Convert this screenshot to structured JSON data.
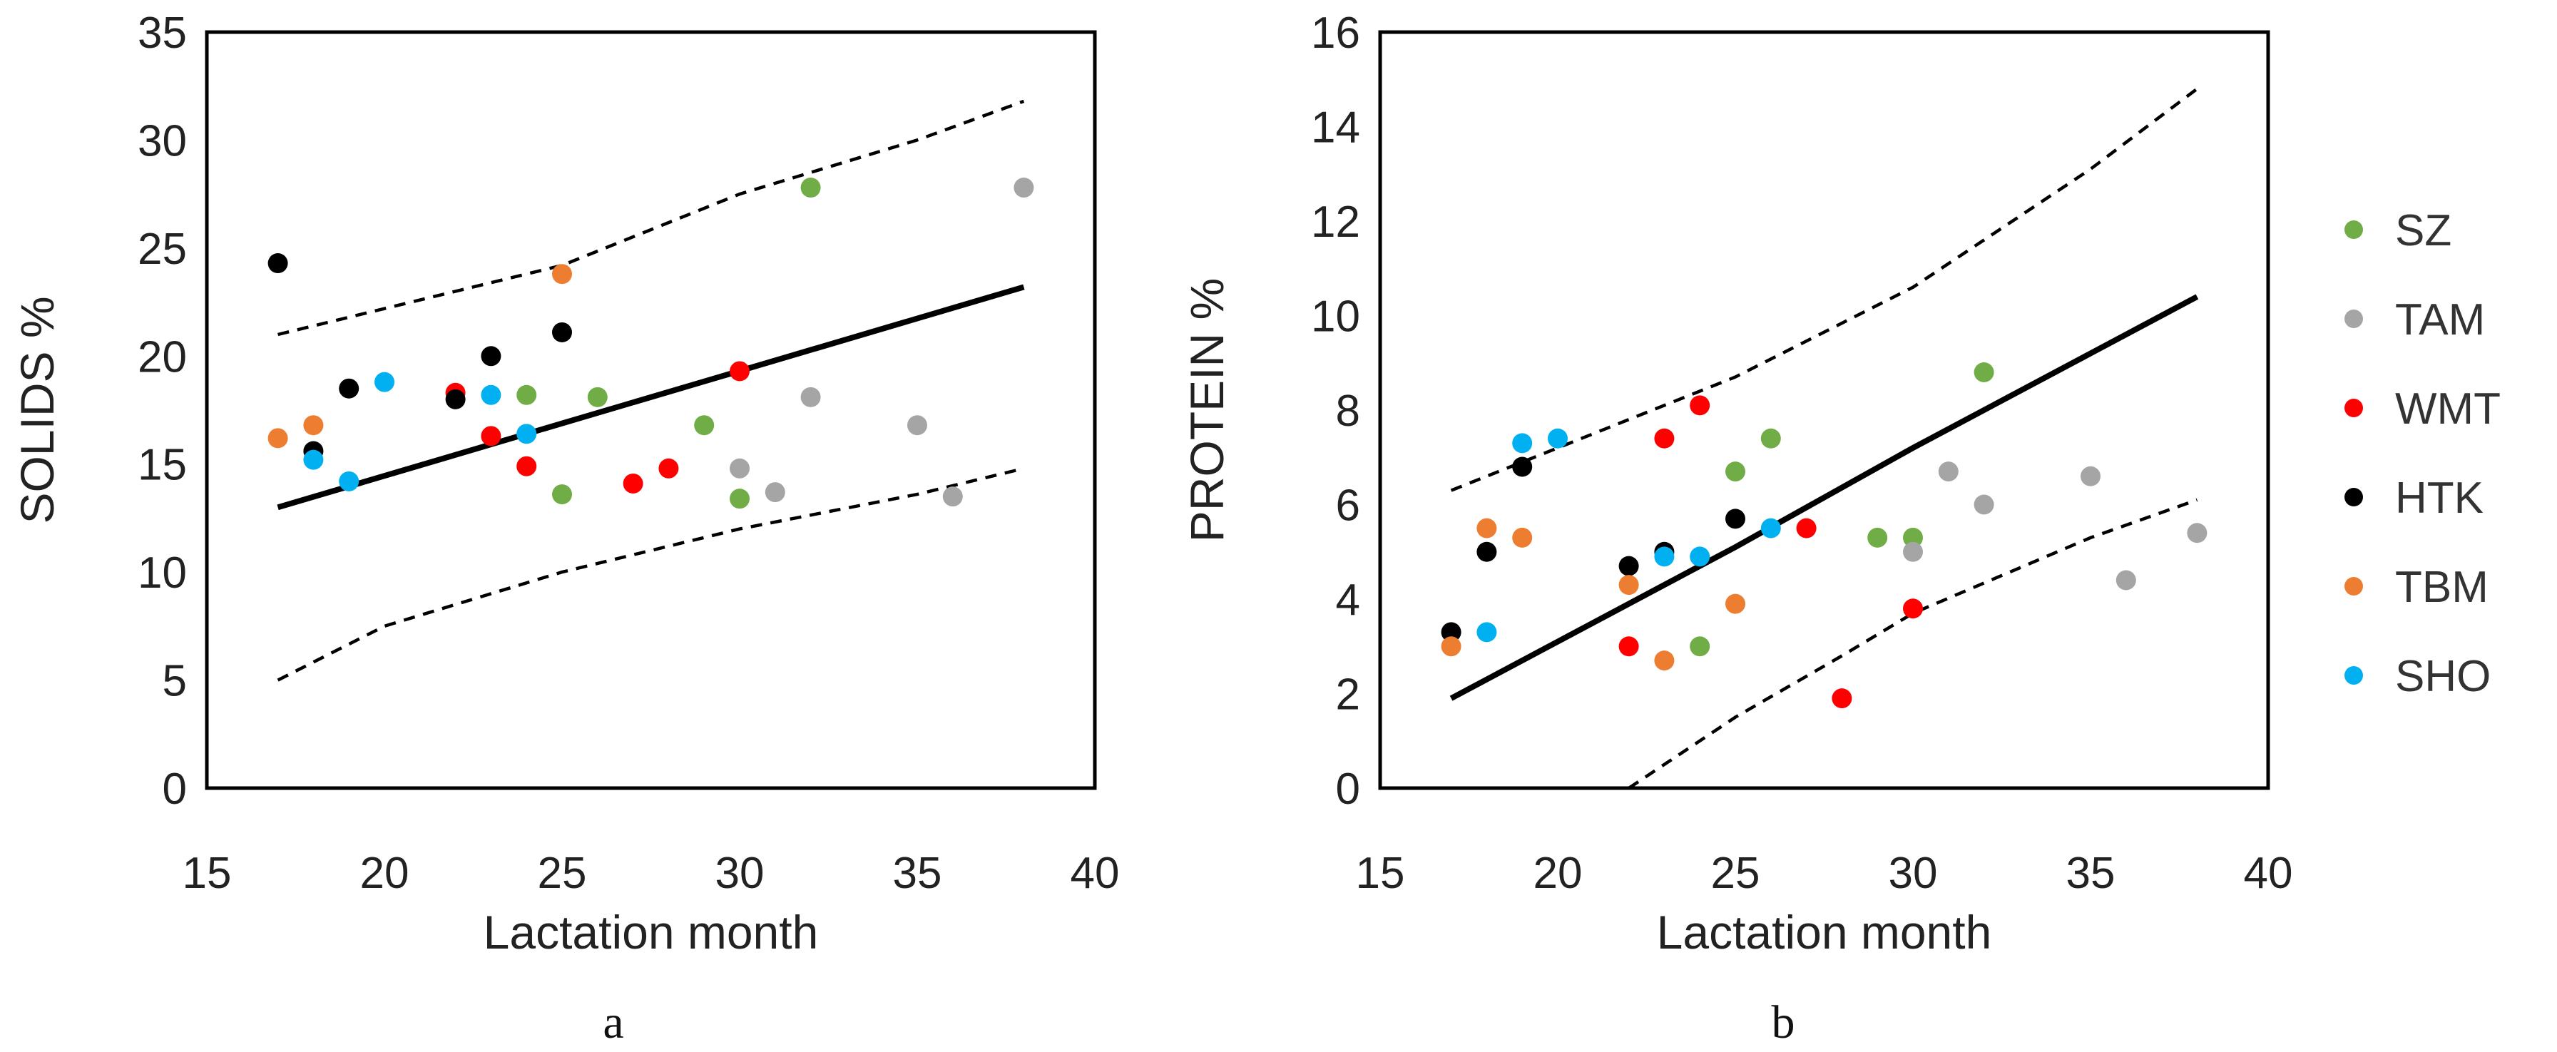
{
  "colors": {
    "SZ": "#70ad47",
    "TAM": "#a5a5a5",
    "WMT": "#ff0000",
    "HTK": "#000000",
    "TBM": "#ed7d31",
    "SHO": "#00b0f0"
  },
  "legend": [
    "SZ",
    "TAM",
    "WMT",
    "HTK",
    "TBM",
    "SHO"
  ],
  "chart_data": [
    {
      "type": "scatter",
      "panel": "a",
      "xlabel": "Lactation month",
      "ylabel": "SOLIDS %",
      "xlim": [
        15,
        40
      ],
      "ylim": [
        0,
        35
      ],
      "xticks": [
        15,
        20,
        25,
        30,
        35,
        40
      ],
      "yticks": [
        0,
        5,
        10,
        15,
        20,
        25,
        30,
        35
      ],
      "grid": false,
      "fit_line": {
        "x": [
          17,
          38
        ],
        "y": [
          13.0,
          23.2
        ]
      },
      "ci_upper": {
        "x": [
          17,
          20,
          25,
          30,
          35,
          38
        ],
        "y": [
          21.0,
          22.2,
          24.2,
          27.5,
          30.0,
          31.8
        ]
      },
      "ci_lower": {
        "x": [
          17,
          20,
          25,
          30,
          35,
          38
        ],
        "y": [
          5.0,
          7.5,
          10.0,
          12.0,
          13.6,
          14.8
        ]
      },
      "series": [
        {
          "name": "SZ",
          "points": [
            [
              24,
              18.2
            ],
            [
              25,
              13.6
            ],
            [
              26,
              18.1
            ],
            [
              29,
              16.8
            ],
            [
              30,
              13.4
            ],
            [
              32,
              27.8
            ]
          ]
        },
        {
          "name": "TAM",
          "points": [
            [
              30,
              14.8
            ],
            [
              31,
              13.7
            ],
            [
              32,
              18.1
            ],
            [
              35,
              16.8
            ],
            [
              36,
              13.5
            ],
            [
              38,
              27.8
            ]
          ]
        },
        {
          "name": "WMT",
          "points": [
            [
              22,
              18.3
            ],
            [
              23,
              16.3
            ],
            [
              24,
              14.9
            ],
            [
              27,
              14.1
            ],
            [
              28,
              14.8
            ],
            [
              30,
              19.3
            ]
          ]
        },
        {
          "name": "HTK",
          "points": [
            [
              17,
              24.3
            ],
            [
              18,
              15.6
            ],
            [
              19,
              18.5
            ],
            [
              22,
              18.0
            ],
            [
              23,
              20.0
            ],
            [
              25,
              21.1
            ]
          ]
        },
        {
          "name": "TBM",
          "points": [
            [
              17,
              16.2
            ],
            [
              18,
              16.8
            ],
            [
              25,
              23.8
            ]
          ]
        },
        {
          "name": "SHO",
          "points": [
            [
              18,
              15.2
            ],
            [
              19,
              14.2
            ],
            [
              20,
              18.8
            ],
            [
              23,
              18.2
            ],
            [
              24,
              16.4
            ]
          ]
        }
      ]
    },
    {
      "type": "scatter",
      "panel": "b",
      "xlabel": "Lactation month",
      "ylabel": "PROTEIN %",
      "xlim": [
        15,
        40
      ],
      "ylim": [
        0,
        16
      ],
      "xticks": [
        15,
        20,
        25,
        30,
        35,
        40
      ],
      "yticks": [
        0,
        2,
        4,
        6,
        8,
        10,
        12,
        14,
        16
      ],
      "grid": false,
      "fit_line": {
        "x": [
          17,
          20,
          25,
          30,
          35,
          38
        ],
        "y": [
          1.9,
          3.1,
          5.1,
          7.2,
          9.2,
          10.4
        ]
      },
      "ci_upper": {
        "x": [
          17,
          20,
          25,
          30,
          35,
          38
        ],
        "y": [
          6.3,
          7.2,
          8.7,
          10.6,
          13.1,
          14.8
        ]
      },
      "ci_lower": {
        "x": [
          22,
          25,
          28,
          30,
          35,
          38
        ],
        "y": [
          0.0,
          1.5,
          2.8,
          3.7,
          5.3,
          6.1
        ]
      },
      "series": [
        {
          "name": "SZ",
          "points": [
            [
              24,
              3.0
            ],
            [
              25,
              6.7
            ],
            [
              26,
              7.4
            ],
            [
              29,
              5.3
            ],
            [
              30,
              5.3
            ],
            [
              32,
              8.8
            ]
          ]
        },
        {
          "name": "TAM",
          "points": [
            [
              30,
              5.0
            ],
            [
              31,
              6.7
            ],
            [
              32,
              6.0
            ],
            [
              35,
              6.6
            ],
            [
              36,
              4.4
            ],
            [
              38,
              5.4
            ]
          ]
        },
        {
          "name": "WMT",
          "points": [
            [
              22,
              3.0
            ],
            [
              23,
              7.4
            ],
            [
              24,
              8.1
            ],
            [
              27,
              5.5
            ],
            [
              28,
              1.9
            ],
            [
              30,
              3.8
            ]
          ]
        },
        {
          "name": "HTK",
          "points": [
            [
              17,
              3.3
            ],
            [
              18,
              5.0
            ],
            [
              19,
              6.8
            ],
            [
              22,
              4.7
            ],
            [
              23,
              5.0
            ],
            [
              25,
              5.7
            ]
          ]
        },
        {
          "name": "TBM",
          "points": [
            [
              17,
              3.0
            ],
            [
              18,
              5.5
            ],
            [
              19,
              5.3
            ],
            [
              22,
              4.3
            ],
            [
              23,
              2.7
            ],
            [
              25,
              3.9
            ]
          ]
        },
        {
          "name": "SHO",
          "points": [
            [
              18,
              3.3
            ],
            [
              19,
              7.3
            ],
            [
              20,
              7.4
            ],
            [
              23,
              4.9
            ],
            [
              24,
              4.9
            ],
            [
              26,
              5.5
            ]
          ]
        }
      ]
    }
  ]
}
